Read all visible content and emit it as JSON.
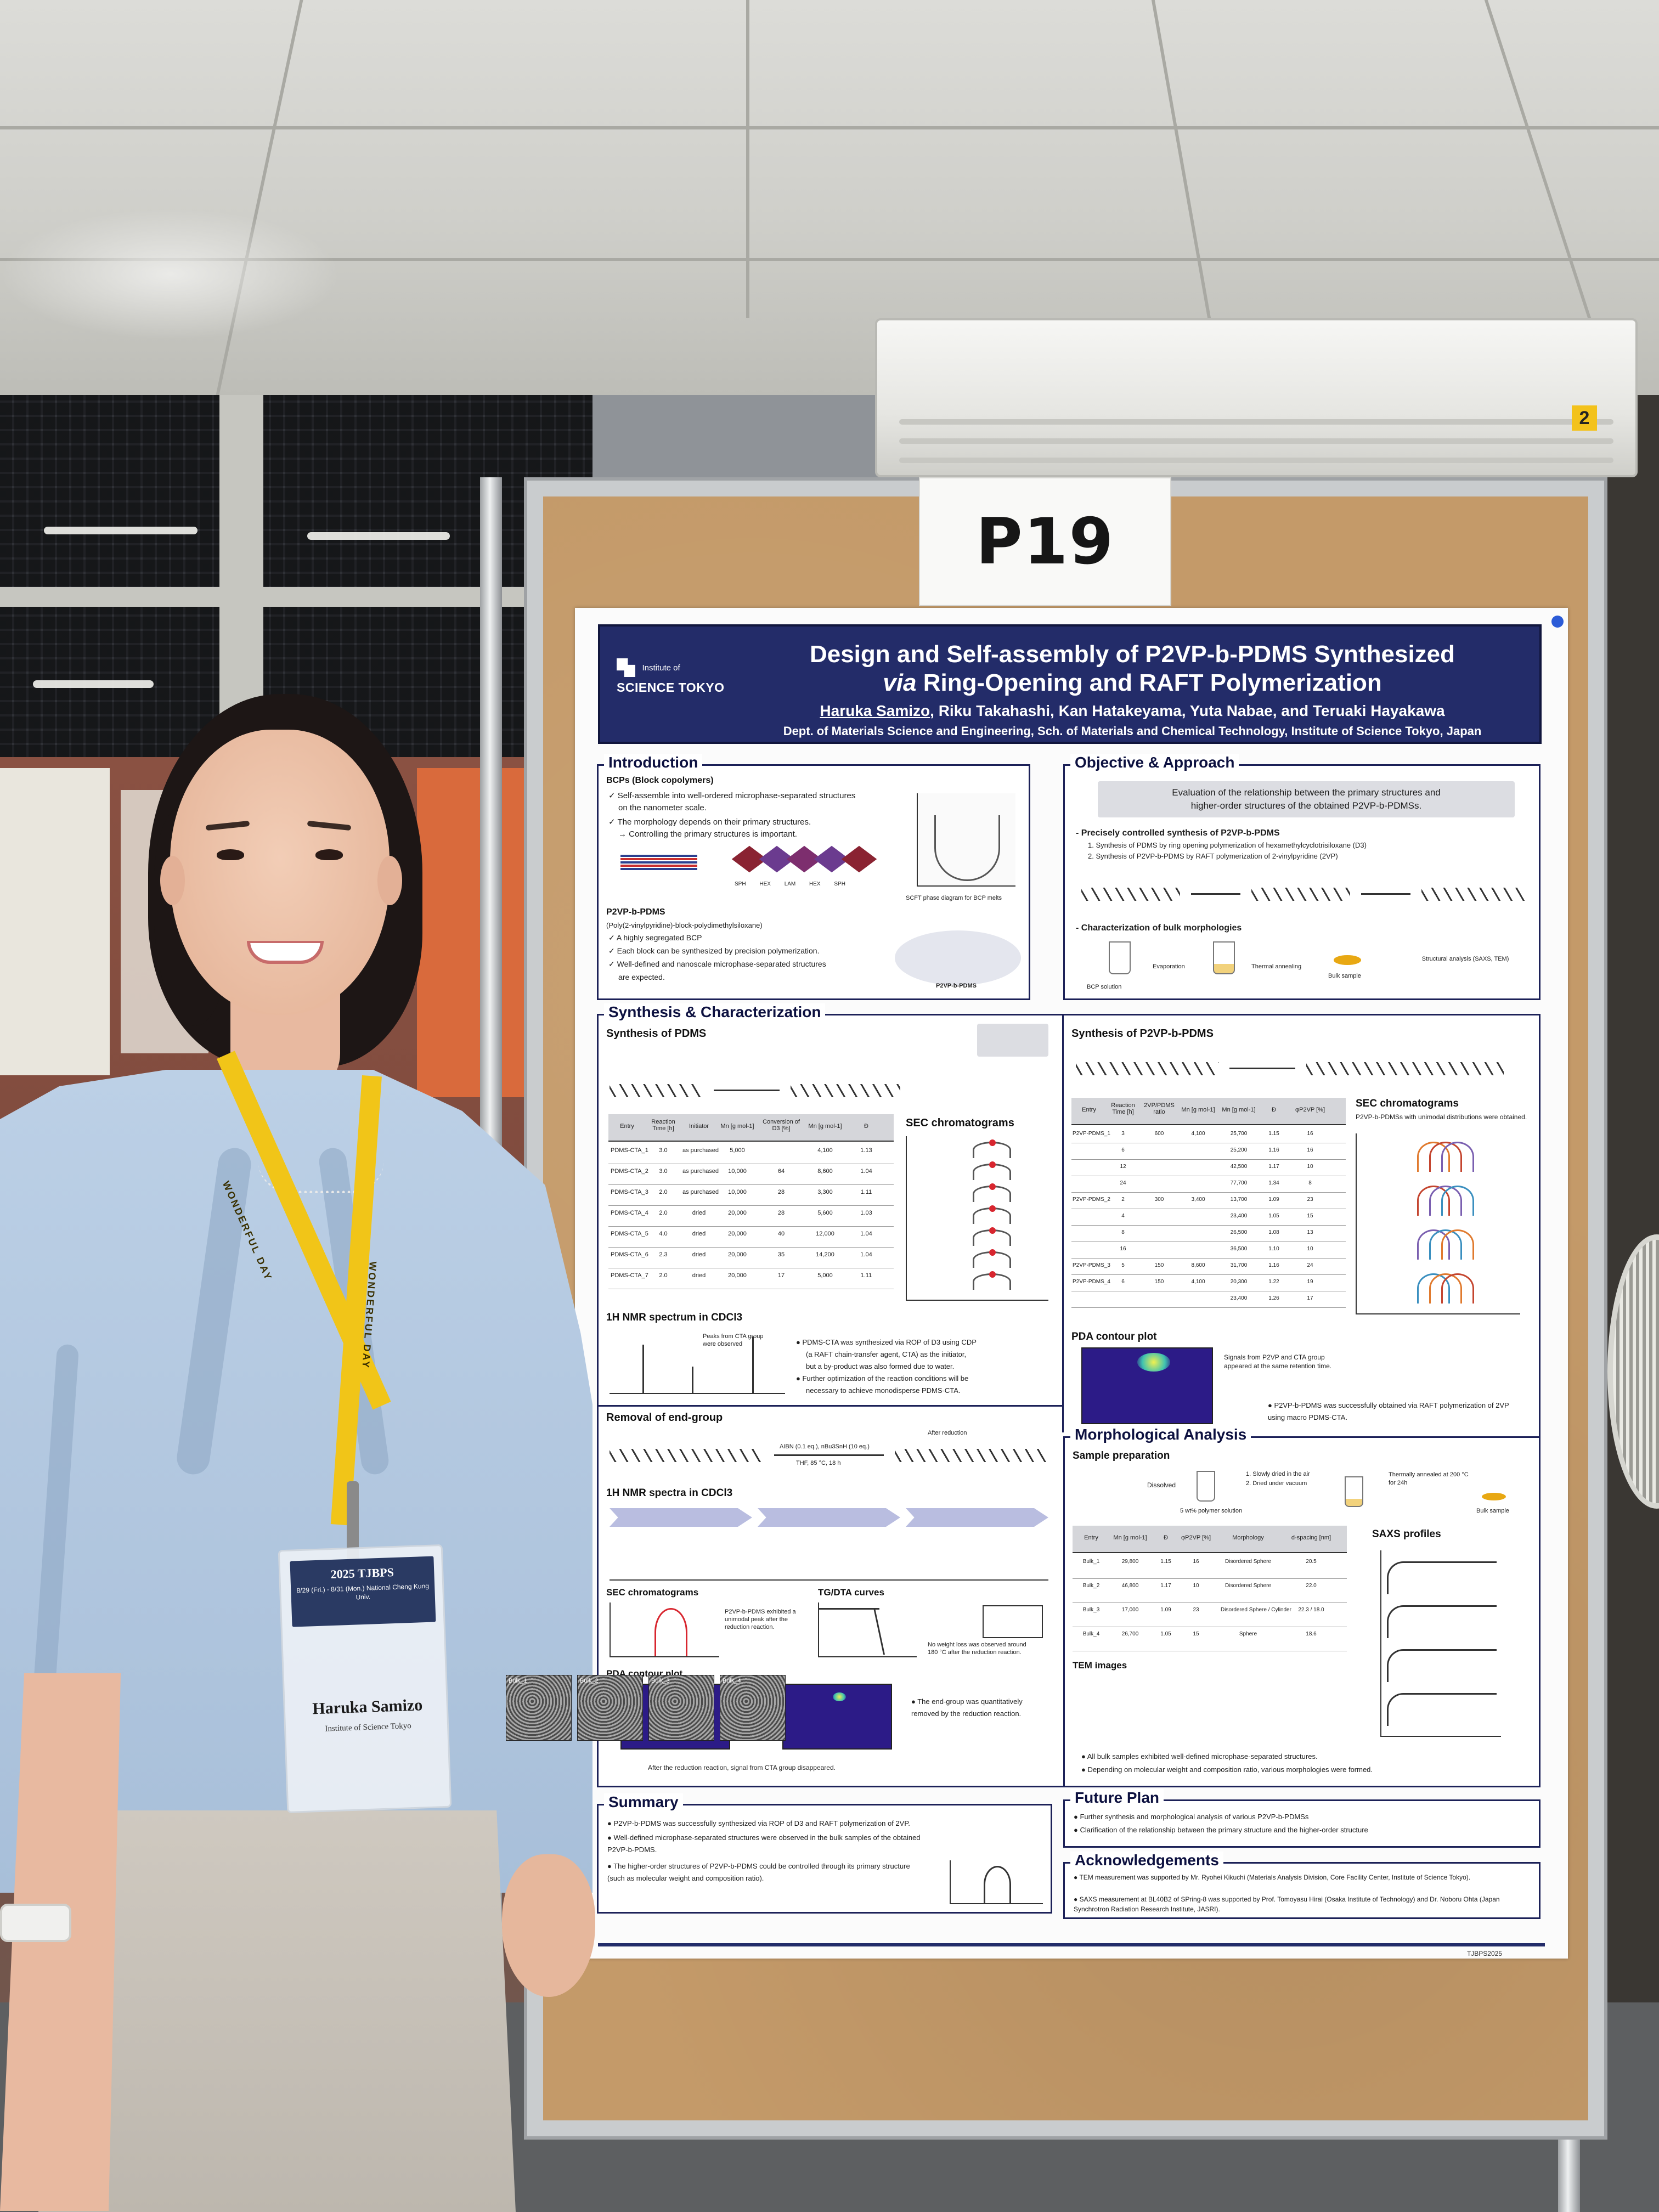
{
  "board": {
    "number": "P19"
  },
  "poster": {
    "logo_small": "Institute of",
    "logo_big": "SCIENCE TOKYO",
    "title_line1": "Design and Self-assembly of P2VP-b-PDMS Synthesized",
    "title_line2_italic": "via",
    "title_line2_rest": " Ring-Opening and RAFT Polymerization",
    "main_author": "Haruka Samizo",
    "coauthors": ", Riku Takahashi, Kan Hatakeyama, Yuta Nabae, and Teruaki Hayakawa",
    "affiliation": "Dept. of Materials Science and Engineering, Sch. of Materials and Chemical Technology, Institute of Science Tokyo, Japan",
    "introduction": {
      "title": "Introduction",
      "bcp_heading": "BCPs (Block copolymers)",
      "bullets": [
        "Self-assemble into well-ordered microphase-separated structures",
        "on the nanometer scale.",
        "The morphology depends on their primary structures.",
        "→ Controlling the primary structures is important."
      ],
      "morph_labels": [
        "SPH",
        "HEX",
        "LAM",
        "HEX",
        "SPH"
      ],
      "phase_caption": "SCFT phase diagram for BCP melts",
      "p2vp_heading": "P2VP-b-PDMS",
      "p2vp_full": "(Poly(2-vinylpyridine)-block-polydimethylsiloxane)",
      "p2vp_bullets": [
        "A highly segregated BCP",
        "Each block can be synthesized by precision polymerization.",
        "Well-defined and nanoscale microphase-separated structures",
        "are expected."
      ],
      "p2vp_label": "P2VP-b-PDMS"
    },
    "objective": {
      "title": "Objective & Approach",
      "aim_line1": "Evaluation of the relationship between the primary structures and",
      "aim_line2": "higher-order structures of the obtained P2VP-b-PDMSs.",
      "step_heading": "- Precisely controlled synthesis of P2VP-b-PDMS",
      "step1": "1. Synthesis of PDMS by ring opening polymerization of hexamethylcyclotrisiloxane (D3)",
      "step2": "2. Synthesis of P2VP-b-PDMS by RAFT polymerization of 2-vinylpyridine (2VP)",
      "char_heading": "- Characterization of bulk morphologies",
      "flow": [
        "BCP solution",
        "Evaporation",
        "Thermal annealing",
        "Bulk sample",
        "Structural analysis (SAXS, TEM)"
      ]
    },
    "synthesis": {
      "title": "Synthesis & Characterization",
      "pdms_heading": "Synthesis of PDMS",
      "sec_title": "SEC chromatograms",
      "nmr_title": "1H NMR spectrum in CDCl3",
      "nmr_note": "Peaks from CTA group were observed",
      "pdms_notes": [
        "PDMS-CTA was synthesized via ROP of D3 using CDP",
        "(a RAFT chain-transfer agent, CTA) as the initiator,",
        "but a by-product was also formed due to water.",
        "Further optimization of the reaction conditions will be",
        "necessary to achieve monodisperse PDMS-CTA."
      ],
      "pdms_table_headers": [
        "Entry",
        "Reaction Time [h]",
        "Initiator",
        "Mn [g mol-1]",
        "Conversion of D3 [%]",
        "Mn [g mol-1]",
        "Ð"
      ],
      "pdms_table_rows": [
        [
          "PDMS-CTA_1",
          "3.0",
          "as purchased",
          "5,000",
          "",
          "4,100",
          "1.13"
        ],
        [
          "PDMS-CTA_2",
          "3.0",
          "as purchased",
          "10,000",
          "64",
          "8,600",
          "1.04"
        ],
        [
          "PDMS-CTA_3",
          "2.0",
          "as purchased",
          "10,000",
          "28",
          "3,300",
          "1.11"
        ],
        [
          "PDMS-CTA_4",
          "2.0",
          "dried",
          "20,000",
          "28",
          "5,600",
          "1.03"
        ],
        [
          "PDMS-CTA_5",
          "4.0",
          "dried",
          "20,000",
          "40",
          "12,000",
          "1.04"
        ],
        [
          "PDMS-CTA_6",
          "2.3",
          "dried",
          "20,000",
          "35",
          "14,200",
          "1.04"
        ],
        [
          "PDMS-CTA_7",
          "2.0",
          "dried",
          "20,000",
          "17",
          "5,000",
          "1.11"
        ]
      ],
      "p2vp_heading": "Synthesis of P2VP-b-PDMS",
      "p2vp_sec_title": "SEC chromatograms",
      "p2vp_sec_note": "P2VP-b-PDMSs with unimodal distributions were obtained.",
      "p2vp_table_headers": [
        "Entry",
        "Reaction Time [h]",
        "2VP/PDMS ratio",
        "Mn [g mol-1]",
        "Mn [g mol-1]",
        "Ð",
        "φP2VP [%]"
      ],
      "p2vp_table_rows": [
        [
          "P2VP-PDMS_1",
          "3",
          "600",
          "4,100",
          "25,700",
          "1.15",
          "16"
        ],
        [
          "",
          "6",
          "",
          "",
          "25,200",
          "1.16",
          "16"
        ],
        [
          "",
          "12",
          "",
          "",
          "42,500",
          "1.17",
          "10"
        ],
        [
          "",
          "24",
          "",
          "",
          "77,700",
          "1.34",
          "8"
        ],
        [
          "P2VP-PDMS_2",
          "2",
          "300",
          "3,400",
          "13,700",
          "1.09",
          "23"
        ],
        [
          "",
          "4",
          "",
          "",
          "23,400",
          "1.05",
          "15"
        ],
        [
          "",
          "8",
          "",
          "",
          "26,500",
          "1.08",
          "13"
        ],
        [
          "",
          "16",
          "",
          "",
          "36,500",
          "1.10",
          "10"
        ],
        [
          "P2VP-PDMS_3",
          "5",
          "150",
          "8,600",
          "31,700",
          "1.16",
          "24"
        ],
        [
          "P2VP-PDMS_4",
          "6",
          "150",
          "4,100",
          "20,300",
          "1.22",
          "19"
        ],
        [
          "",
          "",
          "",
          "",
          "23,400",
          "1.26",
          "17"
        ]
      ],
      "pda_title": "PDA contour plot",
      "pda_note": "Signals from P2VP and CTA group appeared at the same retention time.",
      "p2vp_conclusion": "P2VP-b-PDMS was successfully obtained via RAFT polymerization of 2VP using macro PDMS-CTA.",
      "removal_heading": "Removal of end-group",
      "removal_reagent": "AIBN (0.1 eq.), nBu3SnH (10 eq.)",
      "removal_cond": "THF, 85 °C, 18 h",
      "removal_after": "After reduction",
      "nmr2_title": "1H NMR spectra in CDCl3",
      "sec2_title": "SEC chromatograms",
      "sec2_note": "P2VP-b-PDMS exhibited a unimodal peak after the reduction reaction.",
      "tga_title": "TG/DTA curves",
      "tga_note": "No weight loss was observed around 180 °C after the reduction reaction.",
      "pda2_title": "PDA contour plot",
      "pda2_note": "The end-group was quantitatively removed by the reduction reaction.",
      "pda2_caption": "After the reduction reaction, signal from CTA group disappeared."
    },
    "morphology": {
      "title": "Morphological Analysis",
      "prep_heading": "Sample preparation",
      "prep_steps": [
        "Dissolved",
        "1. Slowly dried in the air",
        "2. Dried under vacuum",
        "Thermally annealed at 200 °C for 24h",
        "Bulk sample"
      ],
      "solution": "5 wt% polymer solution",
      "table_headers": [
        "Entry",
        "Mn [g mol-1]",
        "Ð",
        "φP2VP [%]",
        "Morphology",
        "d-spacing [nm]"
      ],
      "table_rows": [
        [
          "Bulk_1",
          "29,800",
          "1.15",
          "16",
          "Disordered Sphere",
          "20.5"
        ],
        [
          "Bulk_2",
          "46,800",
          "1.17",
          "10",
          "Disordered Sphere",
          "22.0"
        ],
        [
          "Bulk_3",
          "17,000",
          "1.09",
          "23",
          "Disordered Sphere / Cylinder",
          "22.3 / 18.0"
        ],
        [
          "Bulk_4",
          "26,700",
          "1.05",
          "15",
          "Sphere",
          "18.6"
        ]
      ],
      "saxs_title": "SAXS profiles",
      "tem_title": "TEM images",
      "tem_labels": [
        "Bulk_1",
        "Bulk_2",
        "Bulk_3",
        "Bulk_4"
      ],
      "notes": [
        "All bulk samples exhibited well-defined microphase-separated structures.",
        "Depending on molecular weight and composition ratio, various morphologies were formed."
      ]
    },
    "summary": {
      "title": "Summary",
      "items": [
        "P2VP-b-PDMS was successfully synthesized via ROP of D3 and RAFT polymerization of 2VP.",
        "Well-defined microphase-separated structures were observed in the bulk samples of the obtained P2VP-b-PDMS.",
        "The higher-order structures of P2VP-b-PDMS could be controlled through its primary structure (such as molecular weight and composition ratio)."
      ]
    },
    "future": {
      "title": "Future Plan",
      "items": [
        "Further synthesis and morphological analysis of various P2VP-b-PDMSs",
        "Clarification of the relationship between the primary structure and the higher-order structure"
      ]
    },
    "acknowledgements": {
      "title": "Acknowledgements",
      "items": [
        "TEM measurement was supported by Mr. Ryohei Kikuchi (Materials Analysis Division, Core Facility Center, Institute of Science Tokyo).",
        "SAXS measurement at BL40B2 of SPring-8 was supported by Prof. Tomoyasu Hirai (Osaka Institute of Technology) and Dr. Noboru Ohta (Japan Synchrotron Radiation Research Institute, JASRI)."
      ]
    },
    "footer_tag": "TJBPS2025"
  },
  "badge": {
    "year": "2025 TJBPS",
    "sub": "8/29 (Fri.) - 8/31 (Mon.)\nNational Cheng Kung Univ.",
    "name": "Haruka Samizo",
    "institution": "Institute of Science Tokyo"
  },
  "lanyard": {
    "text": "WONDERFUL DAY"
  },
  "ac": {
    "sticker": "2"
  },
  "colors": {
    "header": "#232c69",
    "cork": "#c49a69",
    "shirt": "#b3c8e0",
    "lanyard": "#f1c518"
  }
}
